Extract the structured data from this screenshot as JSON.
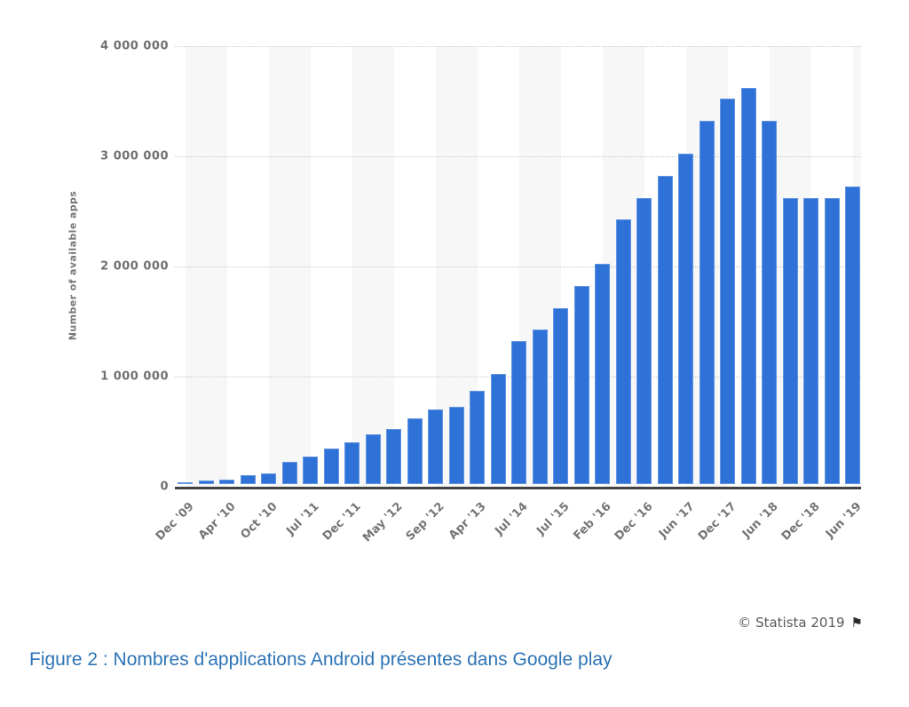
{
  "figure": {
    "credit": "© Statista 2019",
    "flag_icon": "⚑",
    "caption": "Figure 2 : Nombres d'applications Android présentes dans Google play"
  },
  "chart_data": {
    "type": "bar",
    "title": "",
    "xlabel": "",
    "ylabel": "Number of available apps",
    "ylim": [
      0,
      4000000
    ],
    "yticks": [
      0,
      1000000,
      2000000,
      3000000,
      4000000
    ],
    "ytick_labels": [
      "0",
      "1 000 000",
      "2 000 000",
      "3 000 000",
      "4 000 000"
    ],
    "grid": "horizontal dotted",
    "legend": "none",
    "bar_color": "#2e72d8",
    "stripe_color": "#f7f7f7",
    "x_labels": [
      "Dec '09",
      "",
      "Apr '10",
      "",
      "Oct '10",
      "",
      "Jul '11",
      "",
      "Dec '11",
      "",
      "May '12",
      "",
      "Sep '12",
      "",
      "Apr '13",
      "",
      "Jul '14",
      "",
      "Jul '15",
      "",
      "Feb '16",
      "",
      "Dec '16",
      "",
      "Jun '17",
      "",
      "Dec '17",
      "",
      "Jun '18",
      "",
      "Dec '18",
      "",
      "Jun '19"
    ],
    "values": [
      16000,
      30000,
      38000,
      80000,
      100000,
      200000,
      250000,
      320000,
      380000,
      450000,
      500000,
      600000,
      675000,
      700000,
      850000,
      1000000,
      1300000,
      1400000,
      1600000,
      1800000,
      2000000,
      2400000,
      2600000,
      2800000,
      3000000,
      3300000,
      3500000,
      3600000,
      3300000,
      2600000,
      2600000,
      2600000,
      2700000
    ]
  }
}
